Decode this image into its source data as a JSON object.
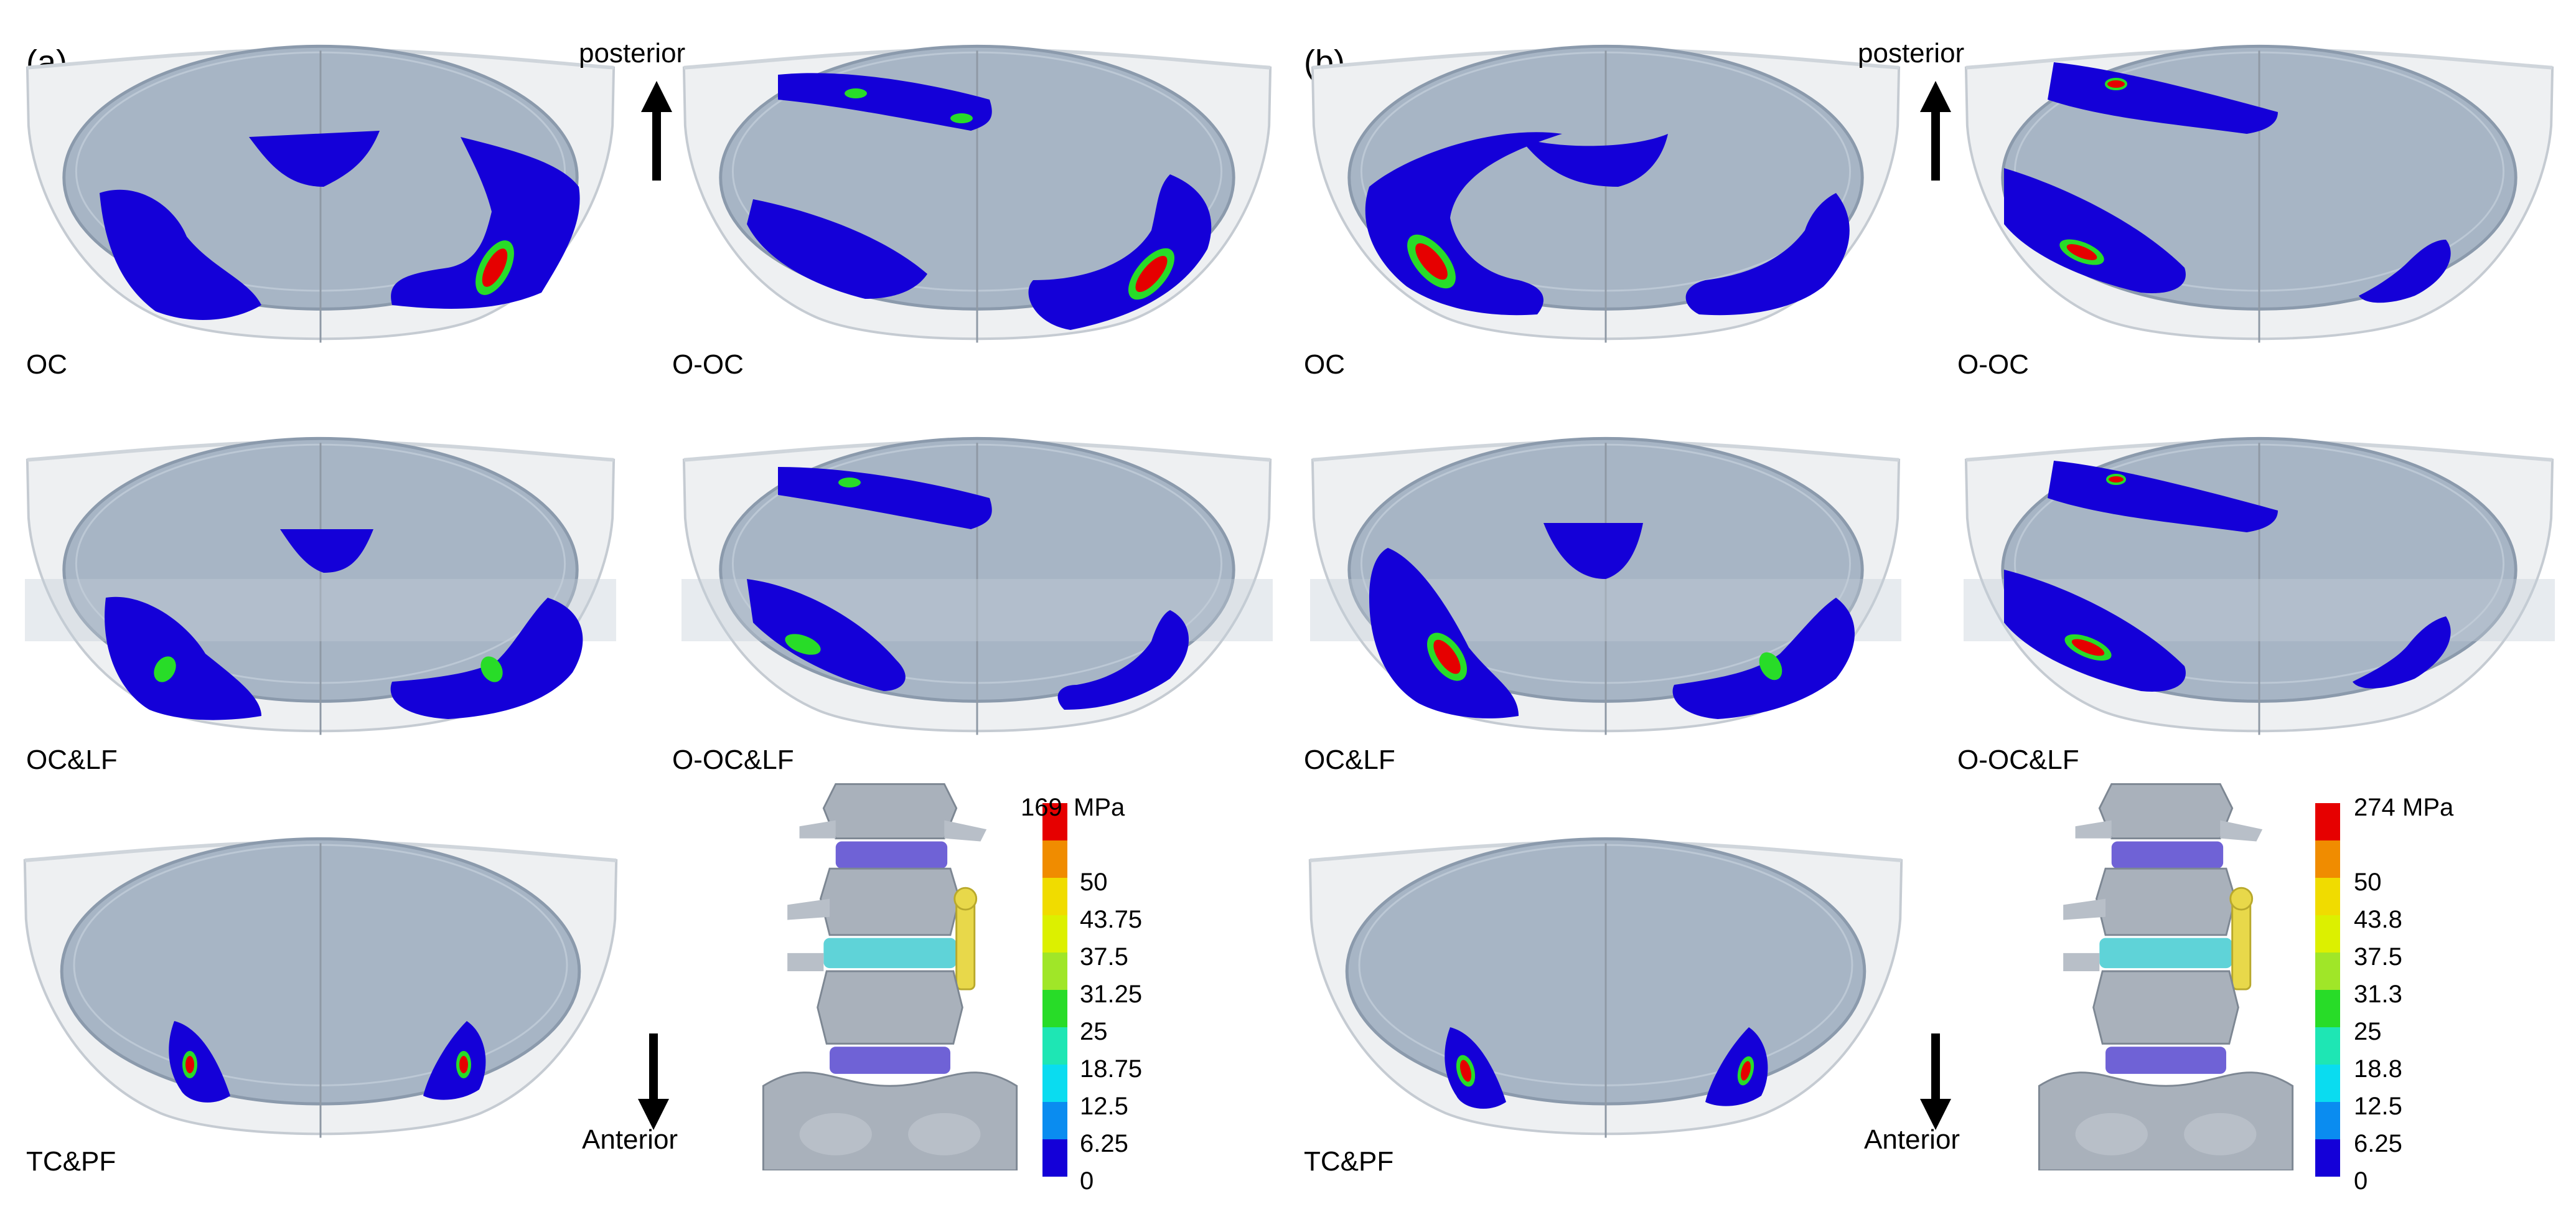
{
  "panels": {
    "a": {
      "label": "(a)",
      "direction_top": "posterior",
      "direction_bottom": "Anterior",
      "cases": [
        "OC",
        "O-OC",
        "OC&LF",
        "O-OC&LF",
        "TC&PF"
      ],
      "colorbar": {
        "unit": "MPa",
        "ticks": [
          "169",
          "50",
          "43.75",
          "37.5",
          "31.25",
          "25",
          "18.75",
          "12.5",
          "6.25",
          "0"
        ]
      }
    },
    "b": {
      "label": "(b)",
      "direction_top": "posterior",
      "direction_bottom": "Anterior",
      "cases": [
        "OC",
        "O-OC",
        "OC&LF",
        "O-OC&LF",
        "TC&PF"
      ],
      "colorbar": {
        "unit": "MPa",
        "ticks": [
          "274",
          "50",
          "43.8",
          "37.5",
          "31.3",
          "25",
          "18.8",
          "12.5",
          "6.25",
          "0"
        ]
      }
    }
  },
  "colors": {
    "contour_blue": "#1400d8",
    "max_red": "#e60000",
    "tray_fill": "#a6b4c4",
    "shell": "#e9ebee",
    "disc_blue": "#6f62d6",
    "disc_cyan": "#5fd3d8",
    "screw_yellow": "#e8d84a"
  },
  "colorbar_colors": [
    "#e60000",
    "#f08c00",
    "#f0dc00",
    "#dcf000",
    "#a0e628",
    "#28dc28",
    "#1ee6b4",
    "#0adcf0",
    "#0a8cf0",
    "#1400d8"
  ]
}
